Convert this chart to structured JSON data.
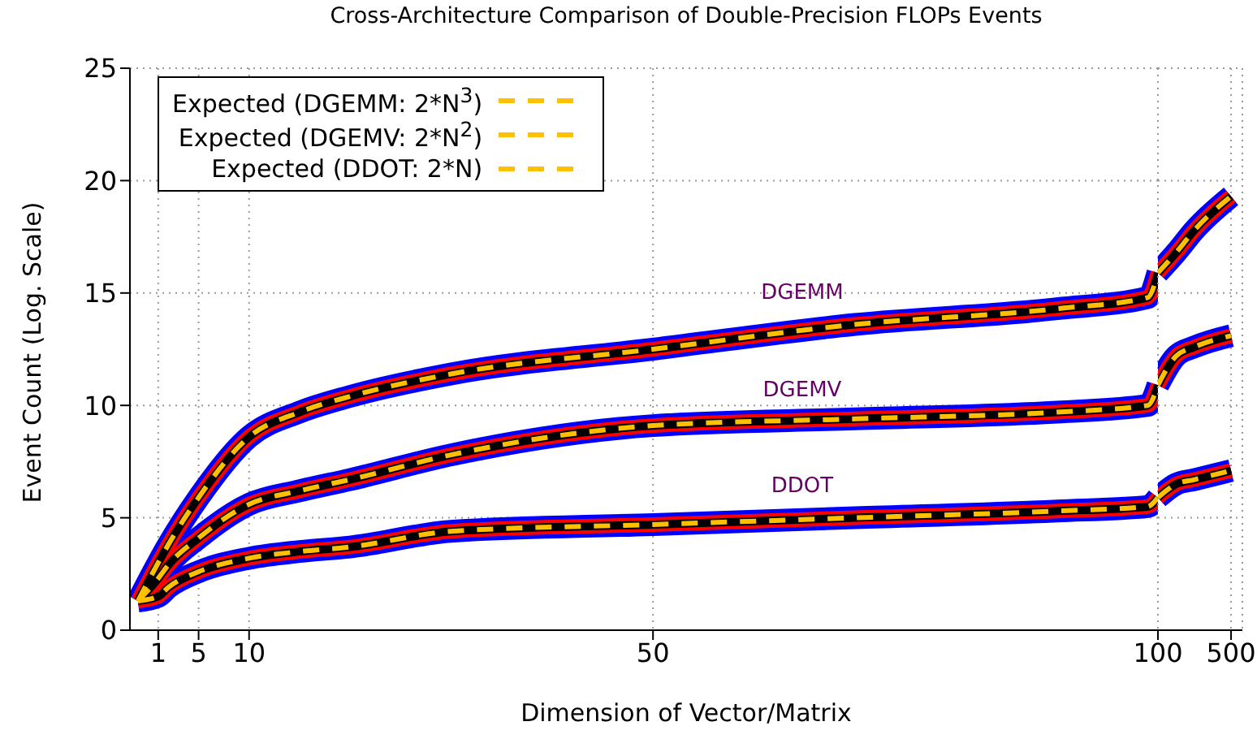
{
  "chart_data": [
    {
      "type": "line",
      "title": "Cross-Architecture Comparison of Double-Precision FLOPs Events",
      "xlabel": "Dimension of Vector/Matrix",
      "ylabel": "Event Count (Log. Scale)",
      "x": [
        -1,
        1,
        2,
        5,
        10,
        15,
        20,
        30,
        50,
        70,
        90,
        99,
        100
      ],
      "series": [
        {
          "color": "#0000ff",
          "values": [
            1.3,
            3.0,
            3.8,
            5.9,
            8.6,
            9.7,
            10.4,
            11.4,
            12.5,
            13.6,
            14.3,
            14.8,
            15.9
          ]
        },
        {
          "color": "#0000ff",
          "values": [
            1.3,
            2.3,
            2.9,
            4.1,
            5.6,
            6.2,
            6.7,
            7.8,
            9.1,
            9.4,
            9.7,
            10.0,
            10.9
          ]
        },
        {
          "color": "#0000ff",
          "values": [
            1.3,
            1.5,
            1.9,
            2.6,
            3.2,
            3.5,
            3.7,
            4.4,
            4.7,
            5.0,
            5.3,
            5.5,
            5.9
          ]
        },
        {
          "color": "#ff0000",
          "values": [
            1.3,
            3.0,
            3.8,
            5.9,
            8.6,
            9.7,
            10.4,
            11.4,
            12.5,
            13.6,
            14.3,
            14.8,
            15.9
          ]
        },
        {
          "color": "#ff0000",
          "values": [
            1.3,
            2.3,
            2.9,
            4.1,
            5.6,
            6.2,
            6.7,
            7.8,
            9.1,
            9.4,
            9.7,
            10.0,
            10.9
          ]
        },
        {
          "color": "#ff0000",
          "values": [
            1.3,
            1.5,
            1.9,
            2.6,
            3.2,
            3.5,
            3.7,
            4.4,
            4.7,
            5.0,
            5.3,
            5.5,
            5.9
          ]
        },
        {
          "color": "#000000",
          "values": [
            1.3,
            3.0,
            3.8,
            5.9,
            8.6,
            9.7,
            10.4,
            11.4,
            12.5,
            13.6,
            14.3,
            14.8,
            15.9
          ]
        },
        {
          "color": "#000000",
          "values": [
            1.3,
            2.3,
            2.9,
            4.1,
            5.6,
            6.2,
            6.7,
            7.8,
            9.1,
            9.4,
            9.7,
            10.0,
            10.9
          ]
        },
        {
          "color": "#000000",
          "values": [
            1.3,
            1.5,
            1.9,
            2.6,
            3.2,
            3.5,
            3.7,
            4.4,
            4.7,
            5.0,
            5.3,
            5.5,
            5.9
          ]
        },
        {
          "name": "Expected (DGEMM: 2*N$^{3}$)",
          "color": "#ffc000",
          "line_style": "dashed",
          "values": [
            1.3,
            3.0,
            3.8,
            5.9,
            8.6,
            9.7,
            10.4,
            11.4,
            12.5,
            13.6,
            14.3,
            14.8,
            15.9
          ]
        },
        {
          "name": "Expected (DGEMV: 2*N$^{2}$)",
          "color": "#ffc000",
          "line_style": "dashed",
          "values": [
            1.3,
            2.3,
            2.9,
            4.1,
            5.6,
            6.2,
            6.7,
            7.8,
            9.1,
            9.4,
            9.7,
            10.0,
            10.9
          ]
        },
        {
          "name": "Expected (DDOT: 2*N)",
          "color": "#ffc000",
          "line_style": "dashed",
          "values": [
            1.3,
            1.5,
            1.9,
            2.6,
            3.2,
            3.5,
            3.7,
            4.4,
            4.7,
            5.0,
            5.3,
            5.5,
            5.9
          ]
        }
      ],
      "annotations": [
        "DGEMM",
        "DGEMV",
        "DDOT"
      ],
      "xlim": [
        -1.8,
        100
      ],
      "xticks": [
        1,
        5,
        10,
        50
      ],
      "ylim": [
        0,
        25
      ],
      "yticks": [
        0,
        5,
        10,
        15,
        20,
        25
      ],
      "grid": true,
      "legend": "top left",
      "marker": "none",
      "line_style": "solid"
    },
    {
      "type": "line",
      "x": [
        100,
        200,
        300,
        500
      ],
      "series": [
        {
          "color": "#0000ff",
          "values": [
            15.9,
            16.8,
            17.8,
            19.3
          ]
        },
        {
          "color": "#0000ff",
          "values": [
            10.9,
            12.2,
            12.6,
            13.1
          ]
        },
        {
          "color": "#0000ff",
          "values": [
            5.9,
            6.5,
            6.7,
            7.1
          ]
        },
        {
          "color": "#ff0000",
          "values": [
            15.9,
            16.8,
            17.8,
            19.3
          ]
        },
        {
          "color": "#ff0000",
          "values": [
            10.9,
            12.2,
            12.6,
            13.1
          ]
        },
        {
          "color": "#ff0000",
          "values": [
            5.9,
            6.5,
            6.7,
            7.1
          ]
        },
        {
          "color": "#000000",
          "values": [
            15.9,
            16.8,
            17.8,
            19.3
          ]
        },
        {
          "color": "#000000",
          "values": [
            10.9,
            12.2,
            12.6,
            13.1
          ]
        },
        {
          "color": "#000000",
          "values": [
            5.9,
            6.5,
            6.7,
            7.1
          ]
        },
        {
          "color": "#ffc000",
          "line_style": "dashed",
          "values": [
            15.9,
            16.8,
            17.8,
            19.3
          ]
        },
        {
          "color": "#ffc000",
          "line_style": "dashed",
          "values": [
            10.9,
            12.2,
            12.6,
            13.1
          ]
        },
        {
          "color": "#ffc000",
          "line_style": "dashed",
          "values": [
            5.9,
            6.5,
            6.7,
            7.1
          ]
        }
      ],
      "xlim": [
        100,
        562
      ],
      "xticks": [
        100,
        500
      ],
      "ylim": [
        0,
        25
      ],
      "yticks": [
        0,
        5,
        10,
        15,
        20,
        25
      ],
      "tick_labels": "x",
      "grid": true,
      "marker": "none",
      "line_style": "solid"
    }
  ]
}
